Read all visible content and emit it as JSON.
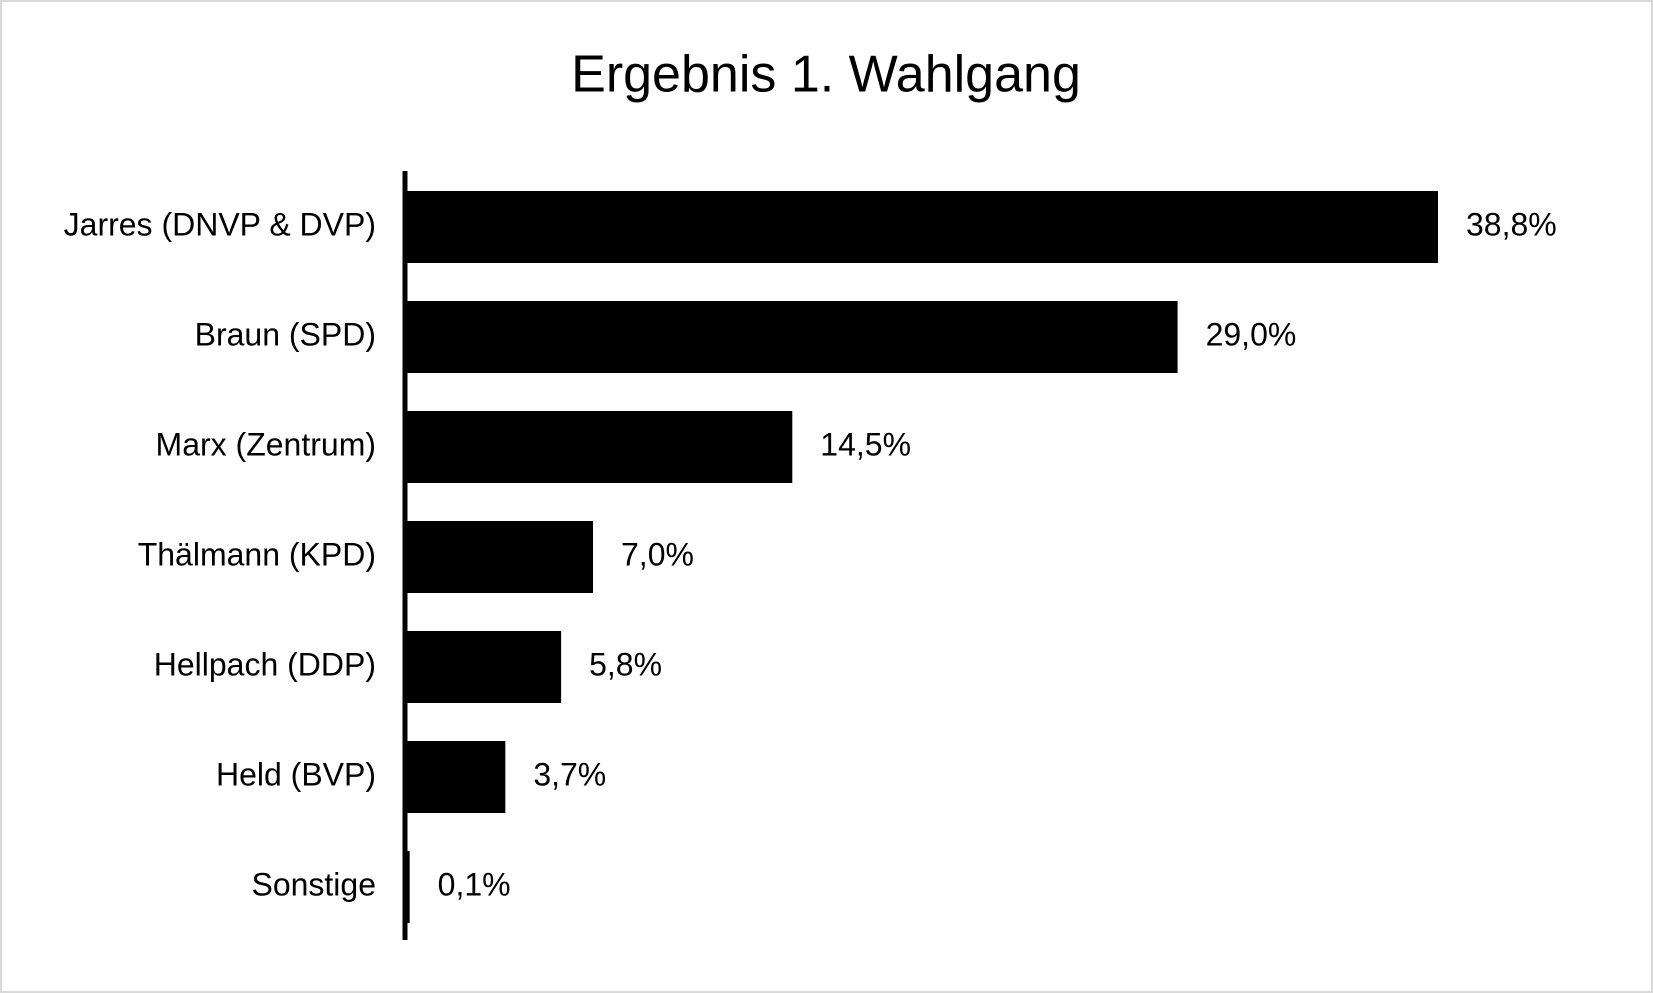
{
  "chart_data": {
    "type": "hbar",
    "title": "Ergebnis 1. Wahlgang",
    "categories": [
      "Jarres (DNVP & DVP)",
      "Braun (SPD)",
      "Marx (Zentrum)",
      "Thälmann (KPD)",
      "Hellpach (DDP)",
      "Held (BVP)",
      "Sonstige"
    ],
    "values": [
      38.8,
      29.0,
      14.5,
      7.0,
      5.8,
      3.7,
      0.1
    ],
    "value_labels": [
      "38,8%",
      "29,0%",
      "14,5%",
      "7,0%",
      "5,8%",
      "3,7%",
      "0,1%"
    ],
    "color": "#000000"
  }
}
